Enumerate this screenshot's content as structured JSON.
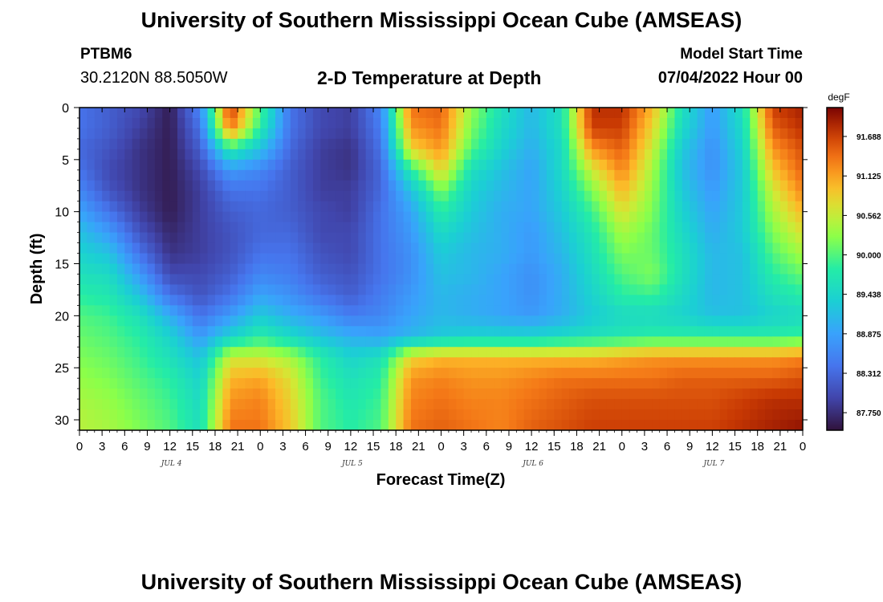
{
  "header": {
    "title": "University of Southern Mississippi Ocean Cube (AMSEAS)",
    "station": "PTBM6",
    "coords": "30.2120N  88.5050W",
    "subtitle": "2-D Temperature at Depth",
    "model_start_label": "Model Start Time",
    "model_start_value": "07/04/2022 Hour 00"
  },
  "footer": {
    "title": "University of Southern Mississippi Ocean Cube (AMSEAS)"
  },
  "chart_data": {
    "type": "heatmap",
    "title": "2-D Temperature at Depth",
    "xlabel": "Forecast Time(Z)",
    "ylabel": "Depth (ft)",
    "x_tick_labels": [
      "0",
      "3",
      "6",
      "9",
      "12",
      "15",
      "18",
      "21",
      "0",
      "3",
      "6",
      "9",
      "12",
      "15",
      "18",
      "21",
      "0",
      "3",
      "6",
      "9",
      "12",
      "15",
      "18",
      "21",
      "0",
      "3",
      "6",
      "9",
      "12",
      "15",
      "18",
      "21",
      "0"
    ],
    "x_range_hours": [
      0,
      96
    ],
    "day_labels": [
      {
        "label": "JUL 4",
        "hour": 12
      },
      {
        "label": "JUL 5",
        "hour": 36
      },
      {
        "label": "JUL 6",
        "hour": 60
      },
      {
        "label": "JUL 7",
        "hour": 84
      }
    ],
    "y_tick_labels": [
      "0",
      "5",
      "10",
      "15",
      "20",
      "25",
      "30"
    ],
    "y_range_ft": [
      0,
      31
    ],
    "colorbar": {
      "unit": "degF",
      "range": [
        87.5,
        92.1
      ],
      "ticks": [
        "91.688",
        "91.125",
        "90.562",
        "90.000",
        "89.438",
        "88.875",
        "88.312",
        "87.750"
      ]
    },
    "depths_ft": [
      0,
      2,
      4,
      6,
      8,
      10,
      12,
      14,
      16,
      18,
      20,
      22,
      24,
      26,
      28,
      31
    ],
    "hours": [
      0,
      4,
      8,
      12,
      16,
      20,
      24,
      28,
      32,
      36,
      40,
      44,
      48,
      52,
      56,
      60,
      64,
      68,
      72,
      76,
      80,
      84,
      88,
      92,
      96
    ],
    "values_degF": [
      [
        88.4,
        88.2,
        88.0,
        87.6,
        88.6,
        91.8,
        90.0,
        88.4,
        88.0,
        87.9,
        88.6,
        91.4,
        91.5,
        90.3,
        89.6,
        89.1,
        89.6,
        91.8,
        91.8,
        91.0,
        89.6,
        88.8,
        89.6,
        91.7,
        91.9
      ],
      [
        88.4,
        88.2,
        87.9,
        87.6,
        88.4,
        91.4,
        89.8,
        88.4,
        88.0,
        87.9,
        88.5,
        91.2,
        91.4,
        90.2,
        89.5,
        89.1,
        89.6,
        91.7,
        91.7,
        90.8,
        89.5,
        88.8,
        89.5,
        91.5,
        91.8
      ],
      [
        88.3,
        88.1,
        87.8,
        87.6,
        88.2,
        89.8,
        89.2,
        88.3,
        87.9,
        87.8,
        88.4,
        90.8,
        91.2,
        90.0,
        89.4,
        89.0,
        89.5,
        91.2,
        91.5,
        90.6,
        89.3,
        88.7,
        89.4,
        91.2,
        91.6
      ],
      [
        88.4,
        88.0,
        87.8,
        87.6,
        88.0,
        88.8,
        88.6,
        88.2,
        87.9,
        87.8,
        88.3,
        89.8,
        90.8,
        89.6,
        89.2,
        88.9,
        89.5,
        90.6,
        91.3,
        90.4,
        89.2,
        88.7,
        89.3,
        90.9,
        91.5
      ],
      [
        88.6,
        88.1,
        87.8,
        87.6,
        87.9,
        88.4,
        88.4,
        88.2,
        87.9,
        87.9,
        88.3,
        89.2,
        90.2,
        89.4,
        89.1,
        88.9,
        89.4,
        90.2,
        91.0,
        90.3,
        89.3,
        88.8,
        89.3,
        90.6,
        91.3
      ],
      [
        88.9,
        88.4,
        87.9,
        87.6,
        87.9,
        88.2,
        88.3,
        88.2,
        88.0,
        87.9,
        88.4,
        88.9,
        89.8,
        89.3,
        89.0,
        88.9,
        89.3,
        89.9,
        90.7,
        90.2,
        89.4,
        88.9,
        89.3,
        90.4,
        91.0
      ],
      [
        89.2,
        88.8,
        88.1,
        87.7,
        87.9,
        88.1,
        88.3,
        88.3,
        88.0,
        88.0,
        88.4,
        88.8,
        89.5,
        89.2,
        89.0,
        88.8,
        89.2,
        89.7,
        90.4,
        90.1,
        89.5,
        89.0,
        89.3,
        90.2,
        90.7
      ],
      [
        89.4,
        89.2,
        88.4,
        87.8,
        87.9,
        88.1,
        88.4,
        88.4,
        88.1,
        88.0,
        88.4,
        88.7,
        89.3,
        89.1,
        89.0,
        88.8,
        89.1,
        89.6,
        90.2,
        90.1,
        89.6,
        89.1,
        89.2,
        90.0,
        90.4
      ],
      [
        89.6,
        89.5,
        88.8,
        88.0,
        88.0,
        88.2,
        88.6,
        88.5,
        88.2,
        88.1,
        88.4,
        88.7,
        89.2,
        89.1,
        88.9,
        88.7,
        89.0,
        89.5,
        90.0,
        90.2,
        89.6,
        89.1,
        89.2,
        89.8,
        90.1
      ],
      [
        89.8,
        89.7,
        89.2,
        88.4,
        88.1,
        88.4,
        88.9,
        88.7,
        88.4,
        88.2,
        88.5,
        88.8,
        89.1,
        89.0,
        88.9,
        88.7,
        89.0,
        89.4,
        89.8,
        89.9,
        89.5,
        89.1,
        89.2,
        89.6,
        89.8
      ],
      [
        90.0,
        89.9,
        89.6,
        89.0,
        88.4,
        88.8,
        89.3,
        89.0,
        88.8,
        88.5,
        88.6,
        88.9,
        89.1,
        89.0,
        88.9,
        88.8,
        89.0,
        89.3,
        89.5,
        89.5,
        89.4,
        89.2,
        89.2,
        89.4,
        89.5
      ],
      [
        90.1,
        90.0,
        89.8,
        89.4,
        88.8,
        89.4,
        89.8,
        89.5,
        89.2,
        89.0,
        88.9,
        89.1,
        89.3,
        89.4,
        89.4,
        89.4,
        89.5,
        89.6,
        89.7,
        89.8,
        89.8,
        89.8,
        89.8,
        89.8,
        89.9
      ],
      [
        90.2,
        90.1,
        89.9,
        89.6,
        89.2,
        90.6,
        90.6,
        90.4,
        89.8,
        89.4,
        89.6,
        90.8,
        91.0,
        91.0,
        91.0,
        91.0,
        91.0,
        91.0,
        91.1,
        91.2,
        91.2,
        91.2,
        91.2,
        91.2,
        91.3
      ],
      [
        90.3,
        90.2,
        90.0,
        89.8,
        89.4,
        91.0,
        91.1,
        90.7,
        89.9,
        89.6,
        89.8,
        91.2,
        91.3,
        91.2,
        91.2,
        91.3,
        91.4,
        91.4,
        91.4,
        91.4,
        91.5,
        91.5,
        91.5,
        91.5,
        91.6
      ],
      [
        90.4,
        90.3,
        90.1,
        89.9,
        89.5,
        91.2,
        91.3,
        90.8,
        90.0,
        89.7,
        89.9,
        91.3,
        91.4,
        91.3,
        91.3,
        91.4,
        91.5,
        91.6,
        91.6,
        91.6,
        91.6,
        91.6,
        91.7,
        91.8,
        91.8
      ],
      [
        90.5,
        90.4,
        90.2,
        90.0,
        89.6,
        91.4,
        91.4,
        90.9,
        90.0,
        89.8,
        90.0,
        91.4,
        91.5,
        91.4,
        91.3,
        91.5,
        91.6,
        91.7,
        91.7,
        91.7,
        91.7,
        91.7,
        91.8,
        91.9,
        92.0
      ]
    ]
  }
}
